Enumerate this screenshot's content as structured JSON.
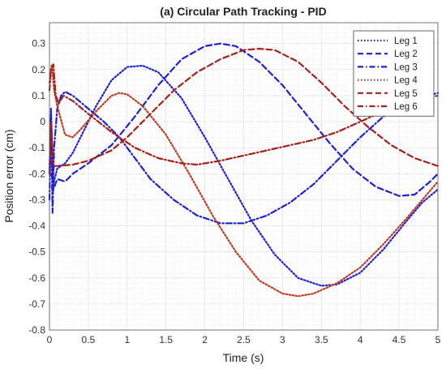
{
  "chart_data": {
    "type": "line",
    "title": "(a) Circular Path Tracking - PID",
    "xlabel": "Time (s)",
    "ylabel": "Position error (cm)",
    "xlim": [
      0,
      5
    ],
    "ylim": [
      -0.8,
      0.38
    ],
    "x_ticks": [
      0,
      0.5,
      1,
      1.5,
      2,
      2.5,
      3,
      3.5,
      4,
      4.5,
      5
    ],
    "y_ticks": [
      -0.8,
      -0.7,
      -0.6,
      -0.5,
      -0.4,
      -0.3,
      -0.2,
      -0.1,
      0,
      0.1,
      0.2,
      0.3
    ],
    "grid": "dense dotted",
    "legend_position": "top-right",
    "series": [
      {
        "name": "Leg 1",
        "color": "#1f1fd8",
        "dash": "dotted",
        "points": [
          [
            0,
            -0.2
          ],
          [
            0.02,
            0.05
          ],
          [
            0.05,
            -0.24
          ],
          [
            0.1,
            -0.18
          ],
          [
            0.2,
            -0.16
          ],
          [
            0.3,
            -0.12
          ],
          [
            0.4,
            -0.06
          ],
          [
            0.6,
            0.06
          ],
          [
            0.8,
            0.16
          ],
          [
            1.0,
            0.21
          ],
          [
            1.2,
            0.215
          ],
          [
            1.4,
            0.19
          ],
          [
            1.7,
            0.09
          ],
          [
            2.0,
            -0.06
          ],
          [
            2.3,
            -0.22
          ],
          [
            2.6,
            -0.38
          ],
          [
            2.9,
            -0.51
          ],
          [
            3.2,
            -0.6
          ],
          [
            3.5,
            -0.63
          ],
          [
            3.7,
            -0.625
          ],
          [
            4.0,
            -0.58
          ],
          [
            4.3,
            -0.49
          ],
          [
            4.6,
            -0.38
          ],
          [
            4.8,
            -0.31
          ],
          [
            5.0,
            -0.26
          ]
        ]
      },
      {
        "name": "Leg 2",
        "color": "#1f1fd8",
        "dash": "dashed",
        "points": [
          [
            0,
            -0.2
          ],
          [
            0.02,
            0.02
          ],
          [
            0.05,
            -0.26
          ],
          [
            0.1,
            -0.22
          ],
          [
            0.2,
            -0.23
          ],
          [
            0.3,
            -0.2
          ],
          [
            0.5,
            -0.16
          ],
          [
            0.8,
            -0.09
          ],
          [
            1.1,
            0.02
          ],
          [
            1.4,
            0.14
          ],
          [
            1.7,
            0.24
          ],
          [
            2.0,
            0.29
          ],
          [
            2.2,
            0.3
          ],
          [
            2.4,
            0.29
          ],
          [
            2.7,
            0.23
          ],
          [
            3.0,
            0.14
          ],
          [
            3.3,
            0.03
          ],
          [
            3.6,
            -0.08
          ],
          [
            3.9,
            -0.18
          ],
          [
            4.2,
            -0.25
          ],
          [
            4.5,
            -0.285
          ],
          [
            4.7,
            -0.28
          ],
          [
            4.9,
            -0.23
          ],
          [
            5.0,
            -0.2
          ]
        ]
      },
      {
        "name": "Leg 3",
        "color": "#1f1fd8",
        "dash": "dashdot",
        "points": [
          [
            0,
            -0.3
          ],
          [
            0.02,
            0.0
          ],
          [
            0.04,
            -0.35
          ],
          [
            0.06,
            -0.1
          ],
          [
            0.1,
            0.05
          ],
          [
            0.15,
            0.1
          ],
          [
            0.2,
            0.115
          ],
          [
            0.3,
            0.1
          ],
          [
            0.5,
            0.05
          ],
          [
            0.7,
            0.0
          ],
          [
            0.9,
            -0.06
          ],
          [
            1.1,
            -0.14
          ],
          [
            1.3,
            -0.22
          ],
          [
            1.6,
            -0.3
          ],
          [
            1.9,
            -0.36
          ],
          [
            2.2,
            -0.39
          ],
          [
            2.5,
            -0.39
          ],
          [
            2.8,
            -0.36
          ],
          [
            3.1,
            -0.31
          ],
          [
            3.4,
            -0.24
          ],
          [
            3.7,
            -0.15
          ],
          [
            4.0,
            -0.06
          ],
          [
            4.3,
            0.02
          ],
          [
            4.6,
            0.07
          ],
          [
            4.8,
            0.095
          ],
          [
            5.0,
            0.11
          ]
        ]
      },
      {
        "name": "Leg 4",
        "color": "#c0391e",
        "dash": "dotted",
        "points": [
          [
            0,
            0.15
          ],
          [
            0.03,
            0.22
          ],
          [
            0.06,
            0.12
          ],
          [
            0.1,
            0.06
          ],
          [
            0.2,
            -0.05
          ],
          [
            0.3,
            -0.06
          ],
          [
            0.4,
            -0.03
          ],
          [
            0.6,
            0.04
          ],
          [
            0.8,
            0.1
          ],
          [
            0.9,
            0.11
          ],
          [
            1.0,
            0.105
          ],
          [
            1.2,
            0.06
          ],
          [
            1.5,
            -0.05
          ],
          [
            1.8,
            -0.2
          ],
          [
            2.1,
            -0.36
          ],
          [
            2.4,
            -0.5
          ],
          [
            2.7,
            -0.61
          ],
          [
            3.0,
            -0.66
          ],
          [
            3.2,
            -0.67
          ],
          [
            3.4,
            -0.66
          ],
          [
            3.7,
            -0.62
          ],
          [
            4.0,
            -0.56
          ],
          [
            4.3,
            -0.47
          ],
          [
            4.6,
            -0.37
          ],
          [
            4.8,
            -0.3
          ],
          [
            5.0,
            -0.23
          ]
        ]
      },
      {
        "name": "Leg 5",
        "color": "#a52018",
        "dash": "dashed",
        "points": [
          [
            0,
            -0.2
          ],
          [
            0.02,
            0.0
          ],
          [
            0.05,
            -0.17
          ],
          [
            0.1,
            -0.17
          ],
          [
            0.3,
            -0.165
          ],
          [
            0.5,
            -0.15
          ],
          [
            0.8,
            -0.11
          ],
          [
            1.0,
            -0.06
          ],
          [
            1.3,
            0.03
          ],
          [
            1.6,
            0.12
          ],
          [
            1.9,
            0.19
          ],
          [
            2.2,
            0.24
          ],
          [
            2.5,
            0.275
          ],
          [
            2.7,
            0.28
          ],
          [
            2.9,
            0.275
          ],
          [
            3.2,
            0.23
          ],
          [
            3.5,
            0.15
          ],
          [
            3.8,
            0.06
          ],
          [
            4.1,
            -0.02
          ],
          [
            4.4,
            -0.09
          ],
          [
            4.7,
            -0.14
          ],
          [
            5.0,
            -0.17
          ]
        ]
      },
      {
        "name": "Leg 6",
        "color": "#a52018",
        "dash": "dashdot",
        "points": [
          [
            0,
            0.12
          ],
          [
            0.02,
            0.2
          ],
          [
            0.05,
            0.22
          ],
          [
            0.08,
            0.1
          ],
          [
            0.12,
            0.07
          ],
          [
            0.18,
            0.1
          ],
          [
            0.3,
            0.08
          ],
          [
            0.5,
            0.03
          ],
          [
            0.8,
            -0.04
          ],
          [
            1.1,
            -0.1
          ],
          [
            1.4,
            -0.14
          ],
          [
            1.7,
            -0.16
          ],
          [
            1.9,
            -0.165
          ],
          [
            2.2,
            -0.15
          ],
          [
            2.5,
            -0.13
          ],
          [
            2.8,
            -0.11
          ],
          [
            3.1,
            -0.09
          ],
          [
            3.4,
            -0.07
          ],
          [
            3.7,
            -0.04
          ],
          [
            4.0,
            0.0
          ],
          [
            4.3,
            0.04
          ],
          [
            4.6,
            0.07
          ],
          [
            5.0,
            0.1
          ]
        ]
      }
    ]
  }
}
